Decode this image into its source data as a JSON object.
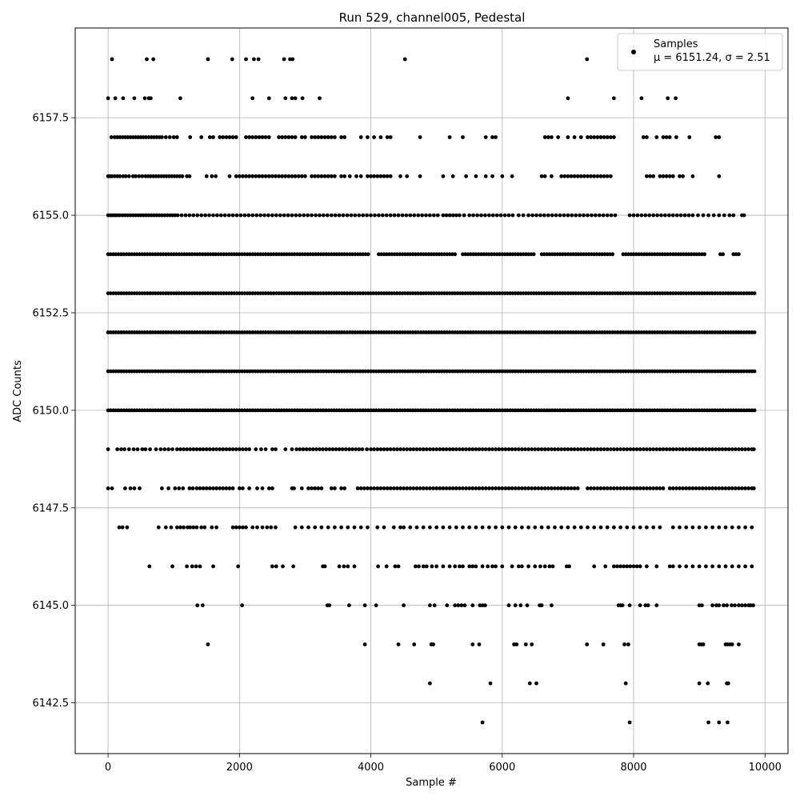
{
  "chart_data": {
    "type": "scatter",
    "title": "Run 529, channel005, Pedestal",
    "xlabel": "Sample #",
    "ylabel": "ADC Counts",
    "xlim": [
      -500,
      10350
    ],
    "ylim": [
      6141.2,
      6159.8
    ],
    "xticks": [
      0,
      2000,
      4000,
      6000,
      8000,
      10000
    ],
    "yticks": [
      6142.5,
      6145.0,
      6147.5,
      6150.0,
      6152.5,
      6155.0,
      6157.5
    ],
    "xtick_labels": [
      "0",
      "2000",
      "4000",
      "6000",
      "8000",
      "10000"
    ],
    "ytick_labels": [
      "6142.5",
      "6145.0",
      "6147.5",
      "6150.0",
      "6152.5",
      "6155.0",
      "6157.5"
    ],
    "grid": true,
    "marker_color": "#000000",
    "legend": {
      "position": "top-right",
      "series_name": "Samples",
      "stats_text": "μ = 6151.24, σ = 2.51"
    },
    "n_samples": 9850,
    "levels": [
      {
        "y": 6142,
        "x": [
          5700,
          7940,
          9140,
          9300,
          9430
        ]
      },
      {
        "y": 6143,
        "x": [
          4900,
          5820,
          6420,
          6520,
          7880,
          9000,
          9130,
          9420,
          9440
        ]
      },
      {
        "y": 6144,
        "x": [
          1520,
          3910,
          4420,
          4660,
          4920,
          4950,
          5550,
          5650,
          6180,
          6220,
          6360,
          6450,
          7290,
          7540,
          7860,
          7920,
          9000,
          9030,
          9060,
          9400,
          9430,
          9470,
          9500,
          9600
        ]
      },
      {
        "y": 6145,
        "x": [
          1360,
          1440,
          2040,
          3340,
          3370,
          3670,
          3910,
          4080,
          4500,
          4900,
          4970,
          5160,
          5280,
          5330,
          5380,
          5430,
          5550,
          5660,
          5700,
          5740,
          6100,
          6200,
          6280,
          6380,
          6570,
          6600,
          6750,
          7770,
          7800,
          7830,
          7940,
          8100,
          8180,
          8220,
          8350,
          9000,
          9040,
          9200,
          9260,
          9300,
          9370,
          9420,
          9490,
          9540,
          9600,
          9650,
          9700,
          9750,
          9780,
          9820
        ]
      },
      {
        "y": 6146,
        "x": [
          630,
          980,
          1200,
          1280,
          1340,
          1400,
          1600,
          1980,
          2500,
          2560,
          2660,
          2820,
          3270,
          3300,
          3520,
          3590,
          3650,
          3750,
          4110,
          4240,
          4370,
          4420,
          4680,
          4730,
          4800,
          4850,
          4930,
          5000,
          5100,
          5200,
          5280,
          5350,
          5400,
          5500,
          5550,
          5600,
          5700,
          5780,
          5850,
          5900,
          6000,
          6150,
          6250,
          6300,
          6400,
          6500,
          6580,
          6650,
          6720,
          6770,
          6980,
          7020,
          7400,
          7570,
          7700,
          7750,
          7800,
          7850,
          7900,
          7950,
          8000,
          8050,
          8100,
          8200,
          8350,
          8550,
          8600,
          8700,
          8800,
          8900,
          9000,
          9100,
          9200,
          9300,
          9400,
          9500,
          9600,
          9700,
          9800
        ]
      },
      {
        "y": 6147,
        "x": [
          170,
          220,
          290,
          770,
          880,
          960,
          1050,
          1100,
          1150,
          1210,
          1250,
          1300,
          1350,
          1420,
          1470,
          1580,
          1650,
          1900,
          1950,
          2000,
          2050,
          2100,
          2200,
          2270,
          2350,
          2420,
          2480,
          2550,
          2850,
          2950,
          3050,
          3150,
          3250,
          3350,
          3450,
          3550,
          3650,
          3750,
          3850,
          3950,
          4100,
          4200,
          4350,
          4450,
          4500,
          4600,
          4700,
          4800,
          4900,
          5000,
          5100,
          5200,
          5300,
          5400,
          5500,
          5600,
          5700,
          5800,
          5900,
          6000,
          6100,
          6200,
          6300,
          6400,
          6500,
          6600,
          6700,
          6800,
          6900,
          7000,
          7100,
          7200,
          7300,
          7400,
          7500,
          7600,
          7700,
          7800,
          7900,
          8000,
          8100,
          8200,
          8300,
          8400,
          8600,
          8700,
          8800,
          8900,
          9000,
          9100,
          9200,
          9300,
          9400,
          9500,
          9600,
          9700,
          9800
        ]
      },
      {
        "y": 6148,
        "x": [
          0,
          60,
          260,
          340,
          400,
          480,
          820,
          920,
          1020,
          1080,
          1140,
          1240,
          1290,
          1350,
          1400,
          1450,
          1500,
          1550,
          1600,
          1650,
          1700,
          1750,
          1800,
          1850,
          1900,
          2000,
          2050,
          2150,
          2270,
          2350,
          2450,
          2500,
          2800,
          2830,
          2950,
          3050,
          3100,
          3150,
          3200,
          3250,
          3400,
          3450,
          3550,
          3600,
          3800,
          3850,
          3900,
          3950,
          4000,
          4050,
          4100,
          4150,
          4200,
          4250,
          4300,
          4350,
          4400,
          4450,
          4500,
          4550,
          4600,
          4650,
          4700,
          4750,
          4800,
          4850,
          4900,
          4950,
          5000,
          5050,
          5100,
          5150,
          5200,
          5250,
          5300,
          5350,
          5400,
          5450,
          5500,
          5550,
          5600,
          5650,
          5700,
          5750,
          5800,
          5850,
          5900,
          5950,
          6000,
          6050,
          6100,
          6150,
          6200,
          6250,
          6300,
          6350,
          6400,
          6450,
          6500,
          6550,
          6600,
          6650,
          6700,
          6750,
          6800,
          6850,
          6900,
          6950,
          7000,
          7050,
          7100,
          7150,
          7300,
          7350,
          7400,
          7450,
          7500,
          7550,
          7600,
          7650,
          7700,
          7750,
          7800,
          7850,
          7900,
          7950,
          8000,
          8050,
          8100,
          8150,
          8200,
          8250,
          8300,
          8350,
          8400,
          8450,
          8550,
          8600,
          8650,
          8700,
          8750,
          8800,
          8850,
          8900,
          8950,
          9000,
          9050,
          9100,
          9150,
          9200,
          9250,
          9300,
          9350,
          9400,
          9450,
          9500,
          9550,
          9600,
          9650,
          9700,
          9750,
          9800,
          9830
        ]
      },
      {
        "y": 6149,
        "x": [
          0,
          140,
          200,
          250,
          320,
          390,
          450,
          520,
          570,
          640,
          730,
          800,
          860,
          920,
          980,
          1050,
          1100,
          1150,
          1200,
          1250,
          1300,
          1350,
          1400,
          1450,
          1500,
          1550,
          1600,
          1650,
          1700,
          1750,
          1800,
          1850,
          1900,
          1950,
          2000,
          2050,
          2100,
          2150,
          2250,
          2330,
          2400,
          2500,
          2550,
          2700,
          2800,
          2870,
          2920,
          2970,
          3020,
          3070,
          3120,
          3170,
          3220,
          3270,
          3320,
          3370,
          3420,
          3470,
          3520,
          3570,
          3620,
          3670,
          3720,
          3770,
          3820,
          3870,
          3940,
          4000,
          4050,
          4100,
          4150,
          4200,
          4250,
          4300,
          4350,
          4400,
          4450,
          4500,
          4550,
          4600,
          4650,
          4700,
          4750,
          4800,
          4850,
          4900,
          4950,
          5000,
          5050,
          5100,
          5150,
          5200,
          5250,
          5300,
          5350,
          5400,
          5450,
          5500,
          5550,
          5600,
          5650,
          5700,
          5750,
          5800,
          5850,
          5900,
          5950,
          6000,
          6050,
          6100,
          6150,
          6200,
          6250,
          6300,
          6350,
          6400,
          6450,
          6500,
          6550,
          6600,
          6650,
          6700,
          6750,
          6800,
          6850,
          6900,
          6950,
          7000,
          7050,
          7100,
          7150,
          7200,
          7250,
          7300,
          7350,
          7400,
          7450,
          7500,
          7550,
          7600,
          7650,
          7700,
          7750,
          7800,
          7850,
          7900,
          7950,
          8000,
          8050,
          8100,
          8150,
          8200,
          8250,
          8300,
          8350,
          8400,
          8450,
          8500,
          8550,
          8600,
          8650,
          8700,
          8750,
          8800,
          8850,
          8900,
          8950,
          9000,
          9050,
          9100,
          9150,
          9200,
          9250,
          9300,
          9350,
          9400,
          9450,
          9500,
          9550,
          9600,
          9650,
          9700,
          9750,
          9800,
          9830
        ]
      },
      {
        "y": 6150,
        "dense": true
      },
      {
        "y": 6151,
        "dense": true
      },
      {
        "y": 6152,
        "dense": true
      },
      {
        "y": 6153,
        "dense": true
      },
      {
        "y": 6154,
        "dense": true,
        "gaps": [
          [
            4000,
            4080
          ],
          [
            5300,
            5380
          ],
          [
            6500,
            6560
          ],
          [
            7700,
            7800
          ],
          [
            9100,
            9300
          ],
          [
            9400,
            9500
          ]
        ],
        "x_max": 9600
      },
      {
        "y": 6155,
        "x": [
          0,
          30,
          60,
          90,
          120,
          150,
          180,
          220,
          260,
          300,
          340,
          380,
          420,
          460,
          500,
          540,
          580,
          620,
          660,
          700,
          740,
          780,
          820,
          860,
          900,
          940,
          980,
          1020,
          1060,
          1120,
          1180,
          1240,
          1300,
          1360,
          1420,
          1480,
          1540,
          1600,
          1660,
          1720,
          1780,
          1840,
          1900,
          1960,
          2020,
          2080,
          2140,
          2200,
          2260,
          2320,
          2380,
          2440,
          2500,
          2560,
          2620,
          2680,
          2740,
          2800,
          2860,
          2920,
          2980,
          3040,
          3100,
          3160,
          3220,
          3280,
          3340,
          3400,
          3460,
          3520,
          3580,
          3640,
          3700,
          3760,
          3820,
          3880,
          3940,
          4000,
          4060,
          4120,
          4180,
          4240,
          4300,
          4360,
          4420,
          4480,
          4540,
          4600,
          4660,
          4720,
          4780,
          4840,
          4900,
          4960,
          5020,
          5100,
          5150,
          5200,
          5250,
          5300,
          5350,
          5420,
          5500,
          5560,
          5620,
          5680,
          5740,
          5800,
          5860,
          5920,
          5980,
          6040,
          6100,
          6160,
          6250,
          6320,
          6400,
          6460,
          6520,
          6580,
          6640,
          6700,
          6760,
          6820,
          6880,
          6940,
          7000,
          7060,
          7120,
          7180,
          7240,
          7300,
          7360,
          7420,
          7480,
          7540,
          7600,
          7660,
          7720,
          7940,
          8000,
          8060,
          8120,
          8180,
          8240,
          8300,
          8360,
          8420,
          8480,
          8540,
          8600,
          8660,
          8720,
          8780,
          8840,
          8900,
          8980,
          9060,
          9140,
          9220,
          9300,
          9380,
          9460,
          9520,
          9650,
          9680
        ]
      },
      {
        "y": 6156,
        "x": [
          0,
          30,
          60,
          100,
          140,
          180,
          230,
          270,
          320,
          380,
          420,
          470,
          520,
          570,
          610,
          650,
          690,
          730,
          770,
          810,
          850,
          890,
          930,
          970,
          1010,
          1050,
          1090,
          1130,
          1200,
          1240,
          1500,
          1580,
          1640,
          1850,
          1950,
          2000,
          2050,
          2100,
          2150,
          2200,
          2250,
          2300,
          2350,
          2400,
          2450,
          2500,
          2550,
          2600,
          2650,
          2700,
          2750,
          2800,
          2850,
          2900,
          2950,
          3000,
          3100,
          3150,
          3200,
          3250,
          3300,
          3350,
          3400,
          3450,
          3550,
          3600,
          3680,
          3780,
          3850,
          3950,
          4000,
          4050,
          4100,
          4150,
          4200,
          4250,
          4300,
          4450,
          4550,
          4750,
          5100,
          5250,
          5450,
          5600,
          5750,
          5850,
          6000,
          6150,
          6600,
          6650,
          6750,
          6900,
          6950,
          7000,
          7050,
          7100,
          7150,
          7200,
          7250,
          7300,
          7350,
          7400,
          7450,
          7500,
          7550,
          7600,
          7650,
          8200,
          8250,
          8300,
          8400,
          8450,
          8500,
          8550,
          8600,
          8700,
          8750,
          8900,
          9300
        ]
      },
      {
        "y": 6157,
        "x": [
          50,
          100,
          140,
          180,
          220,
          260,
          300,
          340,
          380,
          420,
          460,
          500,
          540,
          580,
          620,
          660,
          700,
          740,
          780,
          820,
          880,
          940,
          1000,
          1050,
          1250,
          1420,
          1550,
          1600,
          1700,
          1750,
          1800,
          1850,
          1900,
          1950,
          2100,
          2150,
          2200,
          2250,
          2300,
          2350,
          2400,
          2450,
          2600,
          2650,
          2700,
          2750,
          2800,
          2850,
          2950,
          3000,
          3100,
          3150,
          3200,
          3250,
          3300,
          3350,
          3400,
          3450,
          3550,
          3600,
          3850,
          3950,
          4050,
          4150,
          4250,
          4300,
          4750,
          5200,
          5400,
          5750,
          5850,
          5900,
          6650,
          6700,
          6750,
          6850,
          7000,
          7100,
          7200,
          7300,
          7350,
          7400,
          7450,
          7500,
          7550,
          7600,
          7650,
          7700,
          8150,
          8200,
          8350,
          8450,
          8500,
          8550,
          8650,
          8850,
          9250,
          9300
        ]
      },
      {
        "y": 6158,
        "x": [
          0,
          110,
          230,
          400,
          560,
          620,
          650,
          1100,
          2200,
          2450,
          2700,
          2800,
          2850,
          2960,
          3220,
          7000,
          7700,
          8120,
          8520,
          8640
        ]
      },
      {
        "y": 6159,
        "x": [
          60,
          590,
          690,
          1520,
          1890,
          2100,
          2220,
          2290,
          2680,
          2770,
          2810,
          4520,
          7290
        ]
      }
    ]
  }
}
